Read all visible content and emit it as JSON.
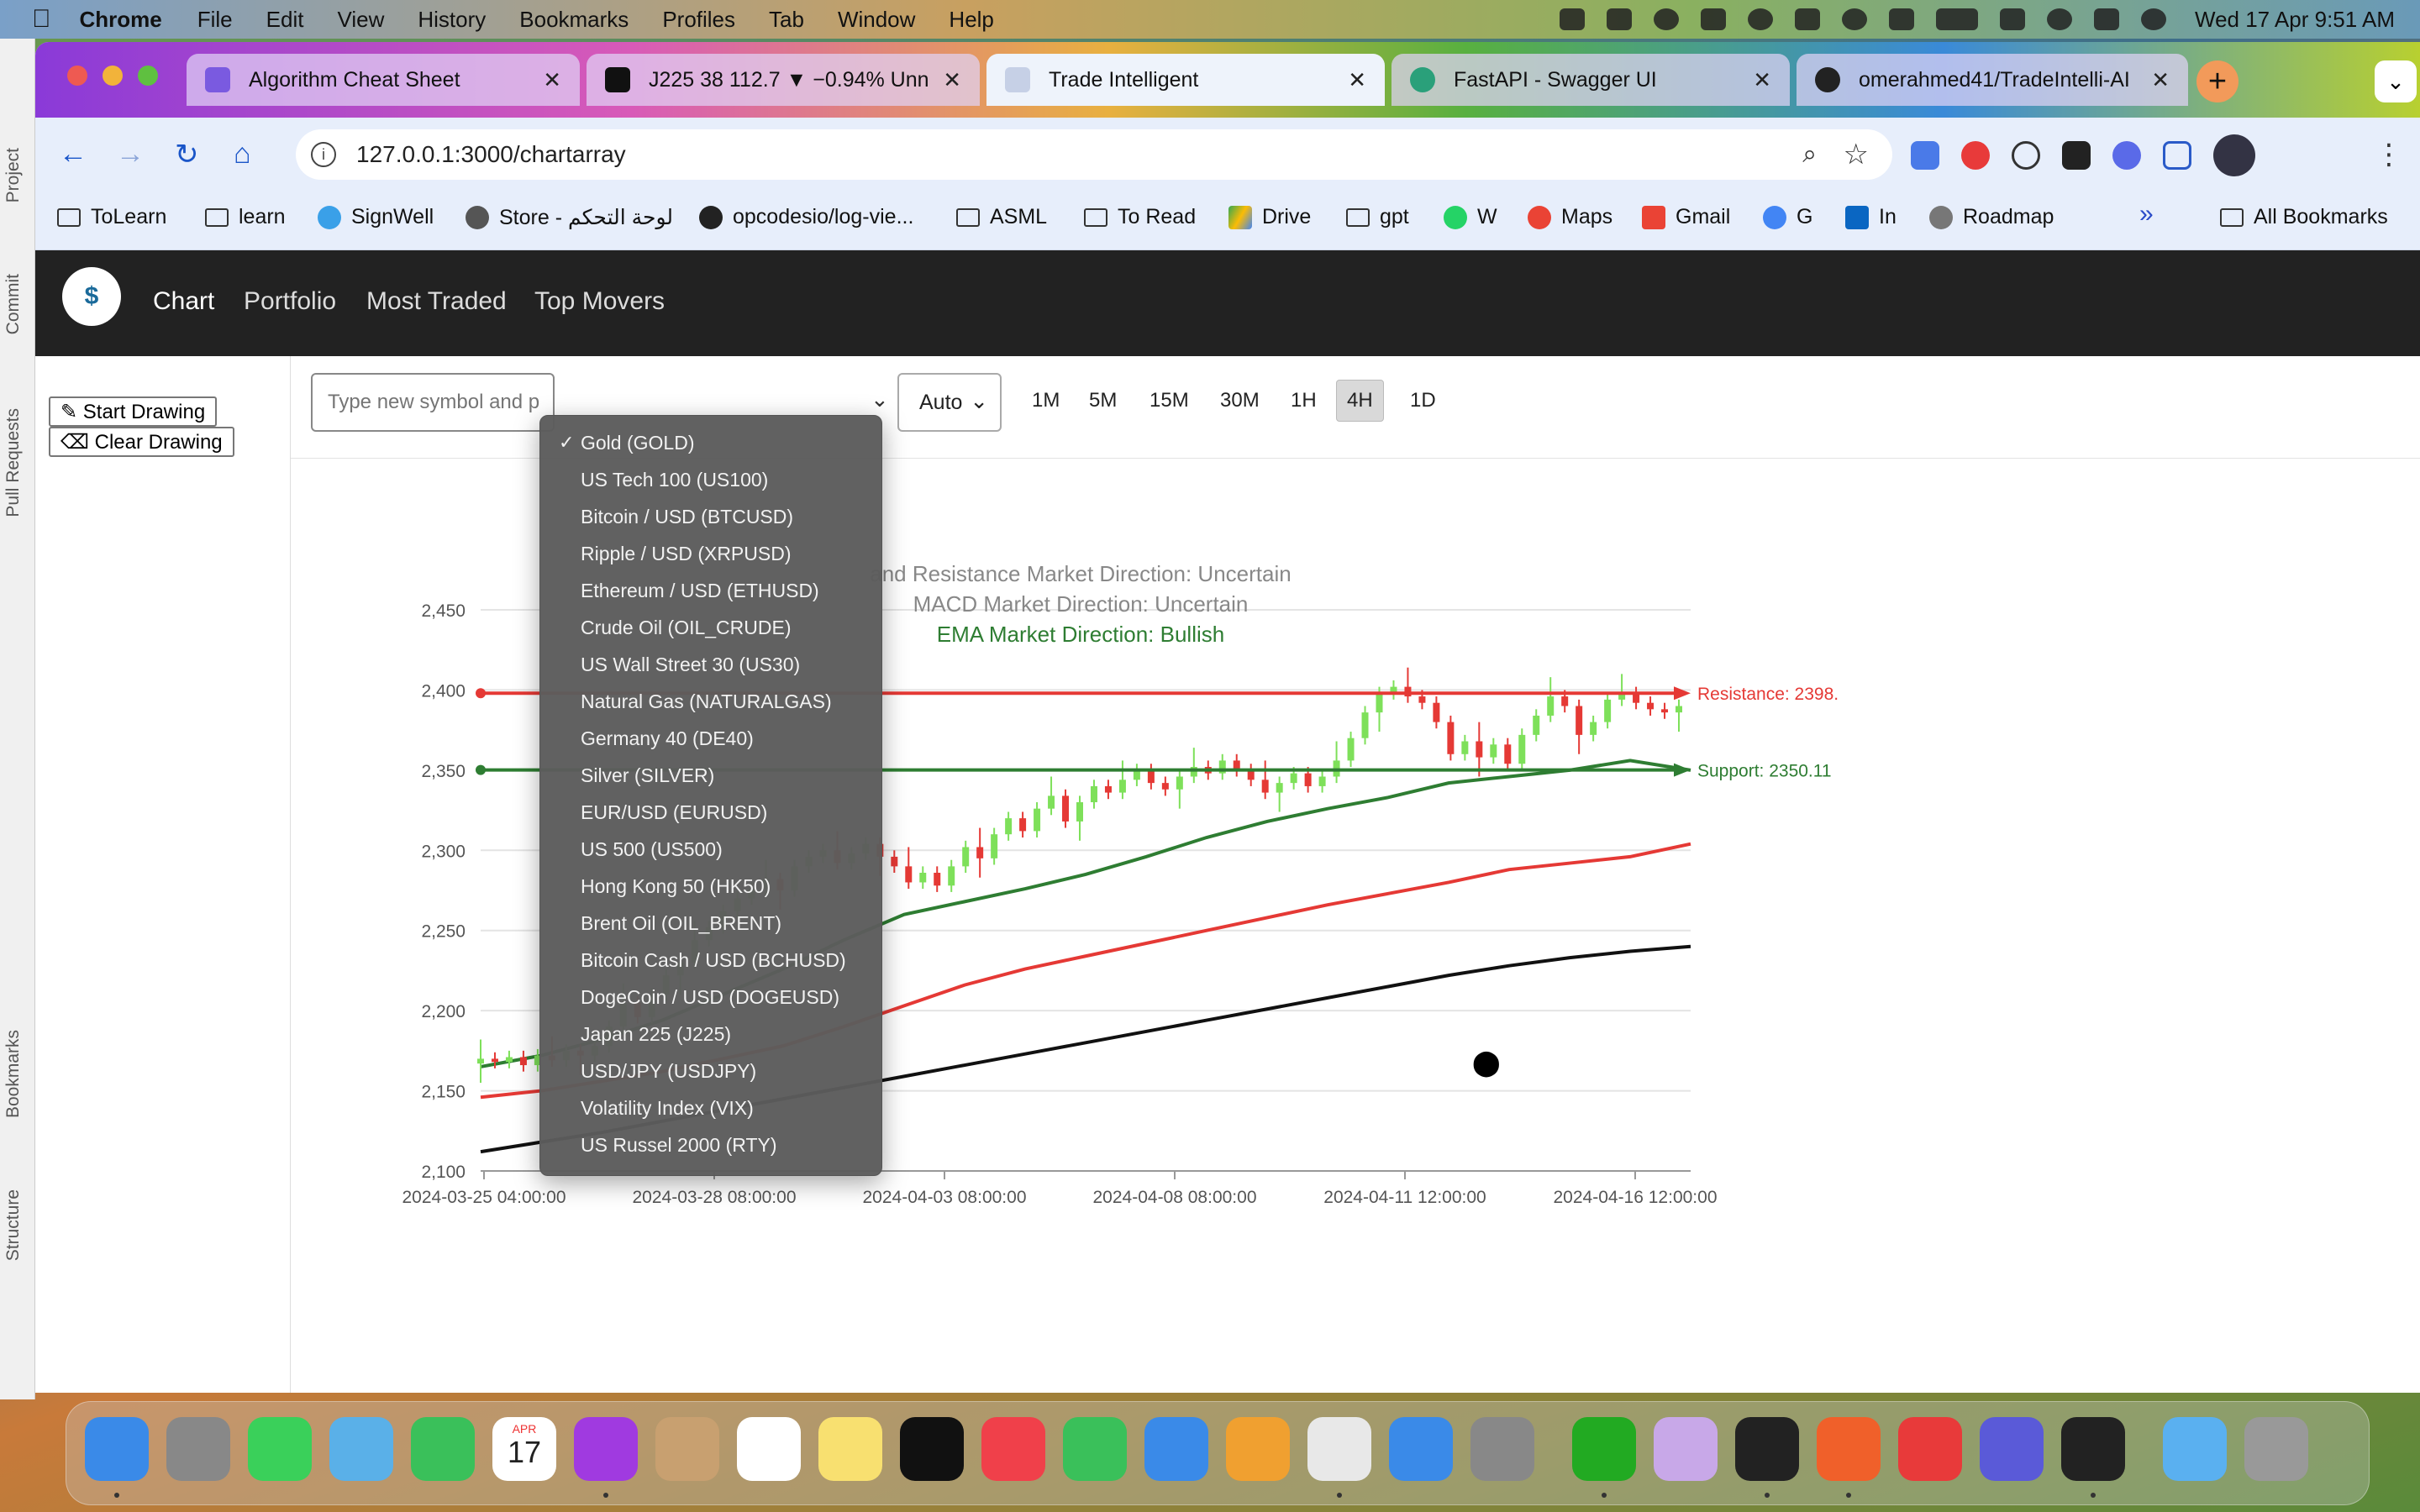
{
  "menubar": {
    "app": "Chrome",
    "items": [
      "File",
      "Edit",
      "View",
      "History",
      "Bookmarks",
      "Profiles",
      "Tab",
      "Window",
      "Help"
    ],
    "clock": "Wed 17 Apr  9:51 AM"
  },
  "ide_strip": {
    "labels": [
      "Project",
      "Commit",
      "Pull Requests",
      "Bookmarks",
      "Structure"
    ]
  },
  "tabs": [
    {
      "title": "Algorithm Cheat Sheet",
      "color": "#7a5ae0"
    },
    {
      "title": "J225 38 112.7 ▼ −0.94% Unn",
      "color": "#111111"
    },
    {
      "title": "Trade Intelligent",
      "color": "#6b7a99"
    },
    {
      "title": "FastAPI - Swagger UI",
      "color": "#2aa07a"
    },
    {
      "title": "omerahmed41/TradeIntelli-AI",
      "color": "#222222"
    }
  ],
  "address": {
    "url": "127.0.0.1:3000/chartarray"
  },
  "bookmarks": [
    {
      "label": "ToLearn",
      "icon": "folder-icon"
    },
    {
      "label": "learn",
      "icon": "folder-icon"
    },
    {
      "label": "SignWell",
      "icon": "signwell-icon"
    },
    {
      "label": "Store - لوحة التحكم",
      "icon": "globe-icon"
    },
    {
      "label": "opcodesio/log-vie...",
      "icon": "github-icon"
    },
    {
      "label": "ASML",
      "icon": "folder-icon"
    },
    {
      "label": "To Read",
      "icon": "folder-icon"
    },
    {
      "label": "Drive",
      "icon": "drive-icon"
    },
    {
      "label": "gpt",
      "icon": "folder-icon"
    },
    {
      "label": "W",
      "icon": "whatsapp-icon"
    },
    {
      "label": "Maps",
      "icon": "maps-icon"
    },
    {
      "label": "Gmail",
      "icon": "gmail-icon"
    },
    {
      "label": "G",
      "icon": "google-icon"
    },
    {
      "label": "In",
      "icon": "linkedin-icon"
    },
    {
      "label": "Roadmap",
      "icon": "roadmap-icon"
    }
  ],
  "all_bookmarks": "All Bookmarks",
  "bookmarks_overflow": "»",
  "nav": {
    "links": [
      "Chart",
      "Portfolio",
      "Most Traded",
      "Top Movers"
    ],
    "active": "Chart"
  },
  "drawing": {
    "start": "✎ Start Drawing",
    "clear": "⌫ Clear Drawing"
  },
  "controls": {
    "symbol_placeholder": "Type new symbol and p",
    "mode": "Auto",
    "timeframes": [
      "1M",
      "5M",
      "15M",
      "30M",
      "1H",
      "4H",
      "1D"
    ],
    "active_timeframe": "4H"
  },
  "symbols": {
    "selected": "Gold (GOLD)",
    "options": [
      "Gold (GOLD)",
      "US Tech 100 (US100)",
      "Bitcoin / USD (BTCUSD)",
      "Ripple / USD (XRPUSD)",
      "Ethereum / USD (ETHUSD)",
      "Crude Oil (OIL_CRUDE)",
      "US Wall Street 30 (US30)",
      "Natural Gas (NATURALGAS)",
      "Germany 40 (DE40)",
      "Silver (SILVER)",
      "EUR/USD (EURUSD)",
      "US 500 (US500)",
      "Hong Kong 50 (HK50)",
      "Brent Oil (OIL_BRENT)",
      "Bitcoin Cash / USD (BCHUSD)",
      "DogeCoin / USD (DOGEUSD)",
      "Japan 225 (J225)",
      "USD/JPY (USDJPY)",
      "Volatility Index (VIX)",
      "US Russel 2000 (RTY)"
    ]
  },
  "chart_data": {
    "type": "line",
    "directions": [
      {
        "text": "and Resistance Market Direction: Uncertain",
        "color": "#888888"
      },
      {
        "text": "MACD Market Direction: Uncertain",
        "color": "#888888"
      },
      {
        "text": "EMA Market Direction: Bullish",
        "color": "#2e7d32"
      }
    ],
    "ylim": [
      2100,
      2460
    ],
    "yticks": [
      "2,100",
      "2,150",
      "2,200",
      "2,250",
      "2,300",
      "2,350",
      "2,400",
      "2,450"
    ],
    "ytick_values": [
      2100,
      2150,
      2200,
      2250,
      2300,
      2350,
      2400,
      2450
    ],
    "xticks": [
      "2024-03-25 04:00:00",
      "2024-03-28 08:00:00",
      "2024-04-03 08:00:00",
      "2024-04-08 08:00:00",
      "2024-04-11 12:00:00",
      "2024-04-16 12:00:00"
    ],
    "resistance": {
      "value": 2398,
      "label": "Resistance: 2398.",
      "color": "#e53935"
    },
    "support": {
      "value": 2350.11,
      "label": "Support: 2350.11",
      "color": "#2e7d32"
    },
    "series": [
      {
        "x": [
          0,
          10,
          20,
          30,
          40,
          50,
          60,
          70,
          80,
          90,
          100,
          110,
          120,
          130,
          140,
          150,
          160,
          170,
          180,
          190,
          200
        ],
        "values": [
          2112,
          2118,
          2124,
          2131,
          2138,
          2145,
          2152,
          2159,
          2166,
          2173,
          2180,
          2187,
          2194,
          2201,
          2208,
          2215,
          2222,
          2228,
          2233,
          2237,
          2240
        ],
        "color": "#111111"
      },
      {
        "x": [
          0,
          10,
          20,
          30,
          40,
          50,
          60,
          70,
          80,
          90,
          100,
          110,
          120,
          130,
          140,
          150,
          160,
          170,
          180,
          190,
          200
        ],
        "values": [
          2146,
          2150,
          2156,
          2162,
          2170,
          2178,
          2190,
          2203,
          2216,
          2226,
          2234,
          2242,
          2250,
          2258,
          2266,
          2273,
          2280,
          2288,
          2292,
          2296,
          2304
        ],
        "color": "#e53935"
      },
      {
        "x": [
          0,
          10,
          20,
          30,
          40,
          50,
          60,
          70,
          80,
          90,
          100,
          110,
          120,
          130,
          140,
          150,
          160,
          170,
          180,
          190,
          200
        ],
        "values": [
          2165,
          2172,
          2182,
          2194,
          2210,
          2226,
          2244,
          2260,
          2268,
          2276,
          2285,
          2296,
          2308,
          2318,
          2326,
          2333,
          2342,
          2346,
          2350,
          2356,
          2350
        ],
        "color": "#2e7d32"
      }
    ],
    "candles_close": [
      2170,
      2168,
      2171,
      2166,
      2172,
      2169,
      2175,
      2172,
      2178,
      2190,
      2205,
      2196,
      2210,
      2222,
      2230,
      2244,
      2252,
      2262,
      2270,
      2276,
      2282,
      2275,
      2290,
      2296,
      2300,
      2292,
      2298,
      2304,
      2296,
      2290,
      2280,
      2286,
      2278,
      2290,
      2302,
      2295,
      2310,
      2320,
      2312,
      2326,
      2334,
      2318,
      2330,
      2340,
      2336,
      2344,
      2350,
      2342,
      2338,
      2346,
      2352,
      2348,
      2356,
      2350,
      2344,
      2336,
      2342,
      2348,
      2340,
      2346,
      2356,
      2370,
      2386,
      2398,
      2402,
      2396,
      2392,
      2380,
      2360,
      2368,
      2358,
      2366,
      2354,
      2372,
      2384,
      2396,
      2390,
      2372,
      2380,
      2394,
      2398,
      2392,
      2388,
      2386,
      2390
    ]
  },
  "dock": {
    "apps": [
      "finder-icon",
      "launchpad-icon",
      "messages-icon",
      "maps-icon",
      "facetime-icon",
      "calendar-icon",
      "podcasts-icon",
      "contacts-icon",
      "reminders-icon",
      "notes-icon",
      "appletv-icon",
      "music-icon",
      "numbers-icon",
      "keynote-icon",
      "pages-icon",
      "chrome-icon",
      "appstore-icon",
      "settings-icon",
      "pycharm-icon",
      "app-icon",
      "intellij-icon",
      "postman-icon",
      "office-icon",
      "teams-icon",
      "terminal-icon",
      "folder-icon",
      "trash-icon"
    ],
    "calendar_month": "APR",
    "calendar_day": "17"
  }
}
